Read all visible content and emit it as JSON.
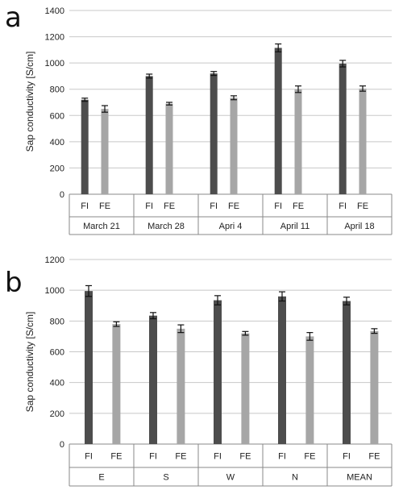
{
  "colors": {
    "FI": "#4d4d4d",
    "FE": "#a6a6a6",
    "grid": "#c8c8c8",
    "axis": "#888888"
  },
  "chart_data": [
    {
      "panel_label": "a",
      "type": "bar",
      "ylabel": "Sap conductivity [S/cm]",
      "ylim": [
        0,
        1400
      ],
      "yticks": [
        0,
        200,
        400,
        600,
        800,
        1000,
        1200,
        1400
      ],
      "grid": true,
      "groups": [
        "March 21",
        "March 28",
        "Apri 4",
        "April 11",
        "April 18"
      ],
      "series_labels": [
        "FI",
        "FE"
      ],
      "values": [
        [
          720,
          650
        ],
        [
          900,
          690
        ],
        [
          920,
          735
        ],
        [
          1115,
          800
        ],
        [
          995,
          805
        ]
      ],
      "errors": [
        [
          12,
          25
        ],
        [
          15,
          10
        ],
        [
          15,
          15
        ],
        [
          30,
          25
        ],
        [
          25,
          20
        ]
      ]
    },
    {
      "panel_label": "b",
      "type": "bar",
      "ylabel": "Sap conductivity [S/cm]",
      "ylim": [
        0,
        1200
      ],
      "yticks": [
        0,
        200,
        400,
        600,
        800,
        1000,
        1200
      ],
      "grid": true,
      "groups": [
        "E",
        "S",
        "W",
        "N",
        "MEAN"
      ],
      "series_labels": [
        "FI",
        "FE"
      ],
      "values": [
        [
          995,
          780
        ],
        [
          835,
          750
        ],
        [
          935,
          720
        ],
        [
          960,
          700
        ],
        [
          930,
          735
        ]
      ],
      "errors": [
        [
          35,
          15
        ],
        [
          20,
          25
        ],
        [
          30,
          12
        ],
        [
          30,
          25
        ],
        [
          25,
          15
        ]
      ]
    }
  ]
}
